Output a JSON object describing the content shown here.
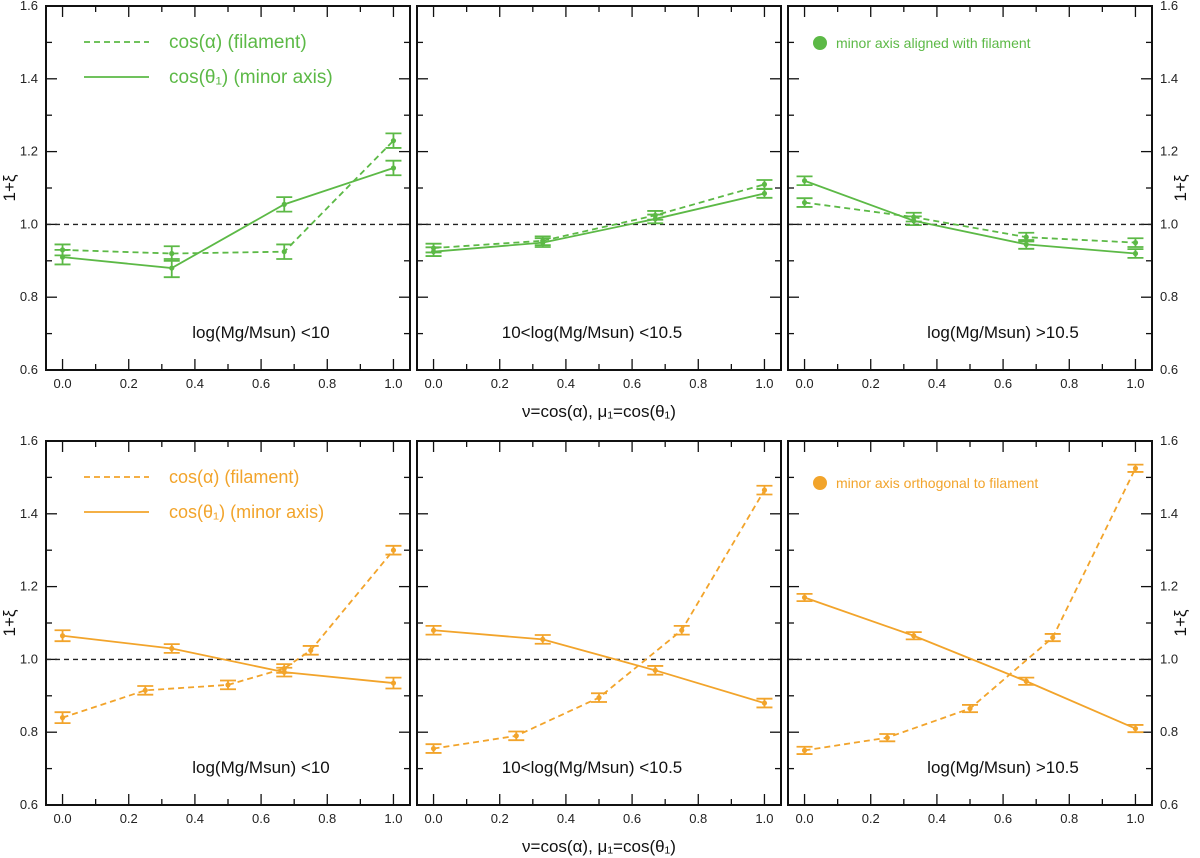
{
  "figure": {
    "ylabel": "1+ξ",
    "xlabel": "ν=cos(α), μ₁=cos(θ₁)",
    "reference_line": 1.0
  },
  "colors": {
    "green": "#5cb946",
    "orange": "#f2a42b",
    "frame": "#111111"
  },
  "chart_data": [
    {
      "type": "line",
      "row": 0,
      "col": 0,
      "xlim": [
        -0.05,
        1.05
      ],
      "ylim": [
        0.6,
        1.6
      ],
      "annotation": "log(Mg/Msun) <10",
      "legend": [
        "cos(α)  (filament)",
        "cos(θ₁) (minor axis)"
      ],
      "series": [
        {
          "name": "cos(α)  (filament)",
          "style": "dashed",
          "x": [
            0.0,
            0.33,
            0.67,
            1.0
          ],
          "y": [
            0.93,
            0.92,
            0.925,
            1.23
          ],
          "err": [
            0.015,
            0.02,
            0.02,
            0.02
          ]
        },
        {
          "name": "cos(θ₁) (minor axis)",
          "style": "solid",
          "x": [
            0.0,
            0.33,
            0.67,
            1.0
          ],
          "y": [
            0.91,
            0.88,
            1.055,
            1.155
          ],
          "err": [
            0.02,
            0.025,
            0.02,
            0.02
          ]
        }
      ]
    },
    {
      "type": "line",
      "row": 0,
      "col": 1,
      "xlim": [
        -0.05,
        1.05
      ],
      "ylim": [
        0.6,
        1.6
      ],
      "annotation": "10<log(Mg/Msun) <10.5",
      "series": [
        {
          "name": "cos(α)  (filament)",
          "style": "dashed",
          "x": [
            0.0,
            0.33,
            0.67,
            1.0
          ],
          "y": [
            0.935,
            0.955,
            1.025,
            1.11
          ],
          "err": [
            0.012,
            0.012,
            0.012,
            0.012
          ]
        },
        {
          "name": "cos(θ₁) (minor axis)",
          "style": "solid",
          "x": [
            0.0,
            0.33,
            0.67,
            1.0
          ],
          "y": [
            0.925,
            0.95,
            1.015,
            1.085
          ],
          "err": [
            0.012,
            0.012,
            0.012,
            0.012
          ]
        }
      ]
    },
    {
      "type": "line",
      "row": 0,
      "col": 2,
      "xlim": [
        -0.05,
        1.05
      ],
      "ylim": [
        0.6,
        1.6
      ],
      "annotation": "log(Mg/Msun) >10.5",
      "note": "minor axis aligned with filament",
      "series": [
        {
          "name": "cos(α)  (filament)",
          "style": "dashed",
          "x": [
            0.0,
            0.33,
            0.67,
            1.0
          ],
          "y": [
            1.06,
            1.02,
            0.965,
            0.95
          ],
          "err": [
            0.012,
            0.012,
            0.012,
            0.012
          ]
        },
        {
          "name": "cos(θ₁) (minor axis)",
          "style": "solid",
          "x": [
            0.0,
            0.33,
            0.67,
            1.0
          ],
          "y": [
            1.12,
            1.01,
            0.945,
            0.92
          ],
          "err": [
            0.012,
            0.012,
            0.012,
            0.012
          ]
        }
      ]
    },
    {
      "type": "line",
      "row": 1,
      "col": 0,
      "xlim": [
        -0.05,
        1.05
      ],
      "ylim": [
        0.6,
        1.6
      ],
      "annotation": "log(Mg/Msun) <10",
      "legend": [
        "cos(α)  (filament)",
        "cos(θ₁) (minor axis)"
      ],
      "series": [
        {
          "name": "cos(α)  (filament)",
          "style": "dashed",
          "x": [
            0.0,
            0.25,
            0.5,
            0.67,
            0.75,
            1.0
          ],
          "y": [
            0.84,
            0.915,
            0.93,
            0.975,
            1.025,
            1.3
          ],
          "err": [
            0.015,
            0.012,
            0.012,
            0.012,
            0.012,
            0.012
          ]
        },
        {
          "name": "cos(θ₁) (minor axis)",
          "style": "solid",
          "x": [
            0.0,
            0.33,
            0.67,
            1.0
          ],
          "y": [
            1.065,
            1.03,
            0.965,
            0.935
          ],
          "err": [
            0.015,
            0.012,
            0.012,
            0.015
          ]
        }
      ]
    },
    {
      "type": "line",
      "row": 1,
      "col": 1,
      "xlim": [
        -0.05,
        1.05
      ],
      "ylim": [
        0.6,
        1.6
      ],
      "annotation": "10<log(Mg/Msun) <10.5",
      "series": [
        {
          "name": "cos(α)  (filament)",
          "style": "dashed",
          "x": [
            0.0,
            0.25,
            0.5,
            0.75,
            1.0
          ],
          "y": [
            0.755,
            0.79,
            0.895,
            1.08,
            1.465
          ],
          "err": [
            0.012,
            0.012,
            0.012,
            0.012,
            0.012
          ]
        },
        {
          "name": "cos(θ₁) (minor axis)",
          "style": "solid",
          "x": [
            0.0,
            0.33,
            0.67,
            1.0
          ],
          "y": [
            1.08,
            1.055,
            0.97,
            0.88
          ],
          "err": [
            0.012,
            0.012,
            0.012,
            0.012
          ]
        }
      ]
    },
    {
      "type": "line",
      "row": 1,
      "col": 2,
      "xlim": [
        -0.05,
        1.05
      ],
      "ylim": [
        0.6,
        1.6
      ],
      "annotation": "log(Mg/Msun) >10.5",
      "note": "minor axis orthogonal to filament",
      "series": [
        {
          "name": "cos(α)  (filament)",
          "style": "dashed",
          "x": [
            0.0,
            0.25,
            0.5,
            0.75,
            1.0
          ],
          "y": [
            0.75,
            0.785,
            0.865,
            1.06,
            1.525
          ],
          "err": [
            0.01,
            0.01,
            0.01,
            0.01,
            0.01
          ]
        },
        {
          "name": "cos(θ₁) (minor axis)",
          "style": "solid",
          "x": [
            0.0,
            0.33,
            0.67,
            1.0
          ],
          "y": [
            1.17,
            1.065,
            0.94,
            0.81
          ],
          "err": [
            0.01,
            0.01,
            0.01,
            0.01
          ]
        }
      ]
    }
  ]
}
